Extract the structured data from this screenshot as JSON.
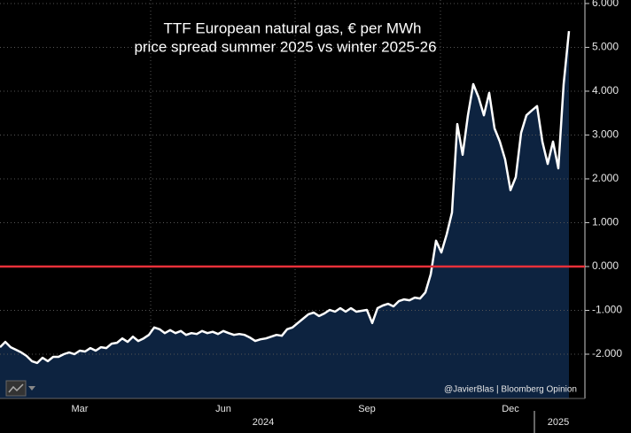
{
  "chart_data": {
    "type": "line",
    "title": "TTF European natural gas, € per MWh",
    "subtitle": "price spread summer 2025 vs winter 2025-26",
    "annotation": "@JavierBlas | Bloomberg Opinion",
    "categories": [
      null,
      null,
      null,
      null,
      null,
      null,
      null,
      null,
      null,
      null,
      null,
      null,
      null,
      null,
      null,
      "Mar",
      null,
      null,
      null,
      null,
      null,
      null,
      null,
      null,
      null,
      null,
      null,
      null,
      null,
      null,
      null,
      null,
      null,
      null,
      null,
      null,
      null,
      null,
      null,
      null,
      null,
      null,
      "Jun",
      null,
      null,
      null,
      null,
      null,
      null,
      null,
      null,
      null,
      null,
      null,
      null,
      null,
      null,
      null,
      null,
      null,
      null,
      null,
      null,
      null,
      null,
      null,
      null,
      null,
      null,
      "Sep",
      null,
      null,
      null,
      null,
      null,
      null,
      null,
      null,
      null,
      null,
      null,
      null,
      null,
      null,
      null,
      null,
      null,
      null,
      null,
      null,
      null,
      null,
      null,
      null,
      null,
      null,
      "Dec",
      null,
      null,
      null,
      null,
      null,
      null,
      null,
      null,
      null,
      null,
      null
    ],
    "year_labels": [
      "2024",
      "2025"
    ],
    "series": [
      {
        "name": "price spread",
        "color": "#ffffff",
        "area_color": "#0d2340",
        "values": [
          -1.84,
          -1.72,
          -1.84,
          -1.9,
          -1.96,
          -2.04,
          -2.16,
          -2.2,
          -2.08,
          -2.16,
          -2.06,
          -2.06,
          -2.0,
          -1.96,
          -2.0,
          -1.92,
          -1.94,
          -1.86,
          -1.92,
          -1.84,
          -1.86,
          -1.76,
          -1.74,
          -1.64,
          -1.72,
          -1.6,
          -1.7,
          -1.64,
          -1.56,
          -1.39,
          -1.43,
          -1.52,
          -1.45,
          -1.52,
          -1.47,
          -1.56,
          -1.52,
          -1.54,
          -1.47,
          -1.52,
          -1.49,
          -1.54,
          -1.47,
          -1.52,
          -1.56,
          -1.54,
          -1.56,
          -1.62,
          -1.7,
          -1.66,
          -1.64,
          -1.6,
          -1.56,
          -1.58,
          -1.43,
          -1.39,
          -1.29,
          -1.19,
          -1.09,
          -1.05,
          -1.13,
          -1.07,
          -0.99,
          -1.03,
          -0.95,
          -1.03,
          -0.95,
          -1.03,
          -1.01,
          -0.99,
          -1.29,
          -0.95,
          -0.89,
          -0.85,
          -0.91,
          -0.79,
          -0.75,
          -0.77,
          -0.71,
          -0.73,
          -0.59,
          -0.18,
          0.59,
          0.32,
          0.73,
          1.23,
          3.25,
          2.55,
          3.45,
          4.16,
          3.86,
          3.45,
          3.96,
          3.15,
          2.85,
          2.44,
          1.74,
          2.04,
          3.05,
          3.45,
          3.56,
          3.66,
          2.85,
          2.34,
          2.85,
          2.24,
          4.16,
          5.37
        ]
      }
    ],
    "reference_line": {
      "value": 0,
      "color": "#e8303a"
    },
    "ylim": [
      -3,
      6.08
    ],
    "yticks": [
      {
        "value": 6,
        "label": "6.000"
      },
      {
        "value": 5,
        "label": "5.000"
      },
      {
        "value": 4,
        "label": "4.000"
      },
      {
        "value": 3,
        "label": "3.000"
      },
      {
        "value": 2,
        "label": "2.000"
      },
      {
        "value": 1,
        "label": "1.000"
      },
      {
        "value": 0,
        "label": "0.000"
      },
      {
        "value": -1,
        "label": "-1.000"
      },
      {
        "value": -2,
        "label": "-2.000"
      }
    ],
    "grid": true
  }
}
